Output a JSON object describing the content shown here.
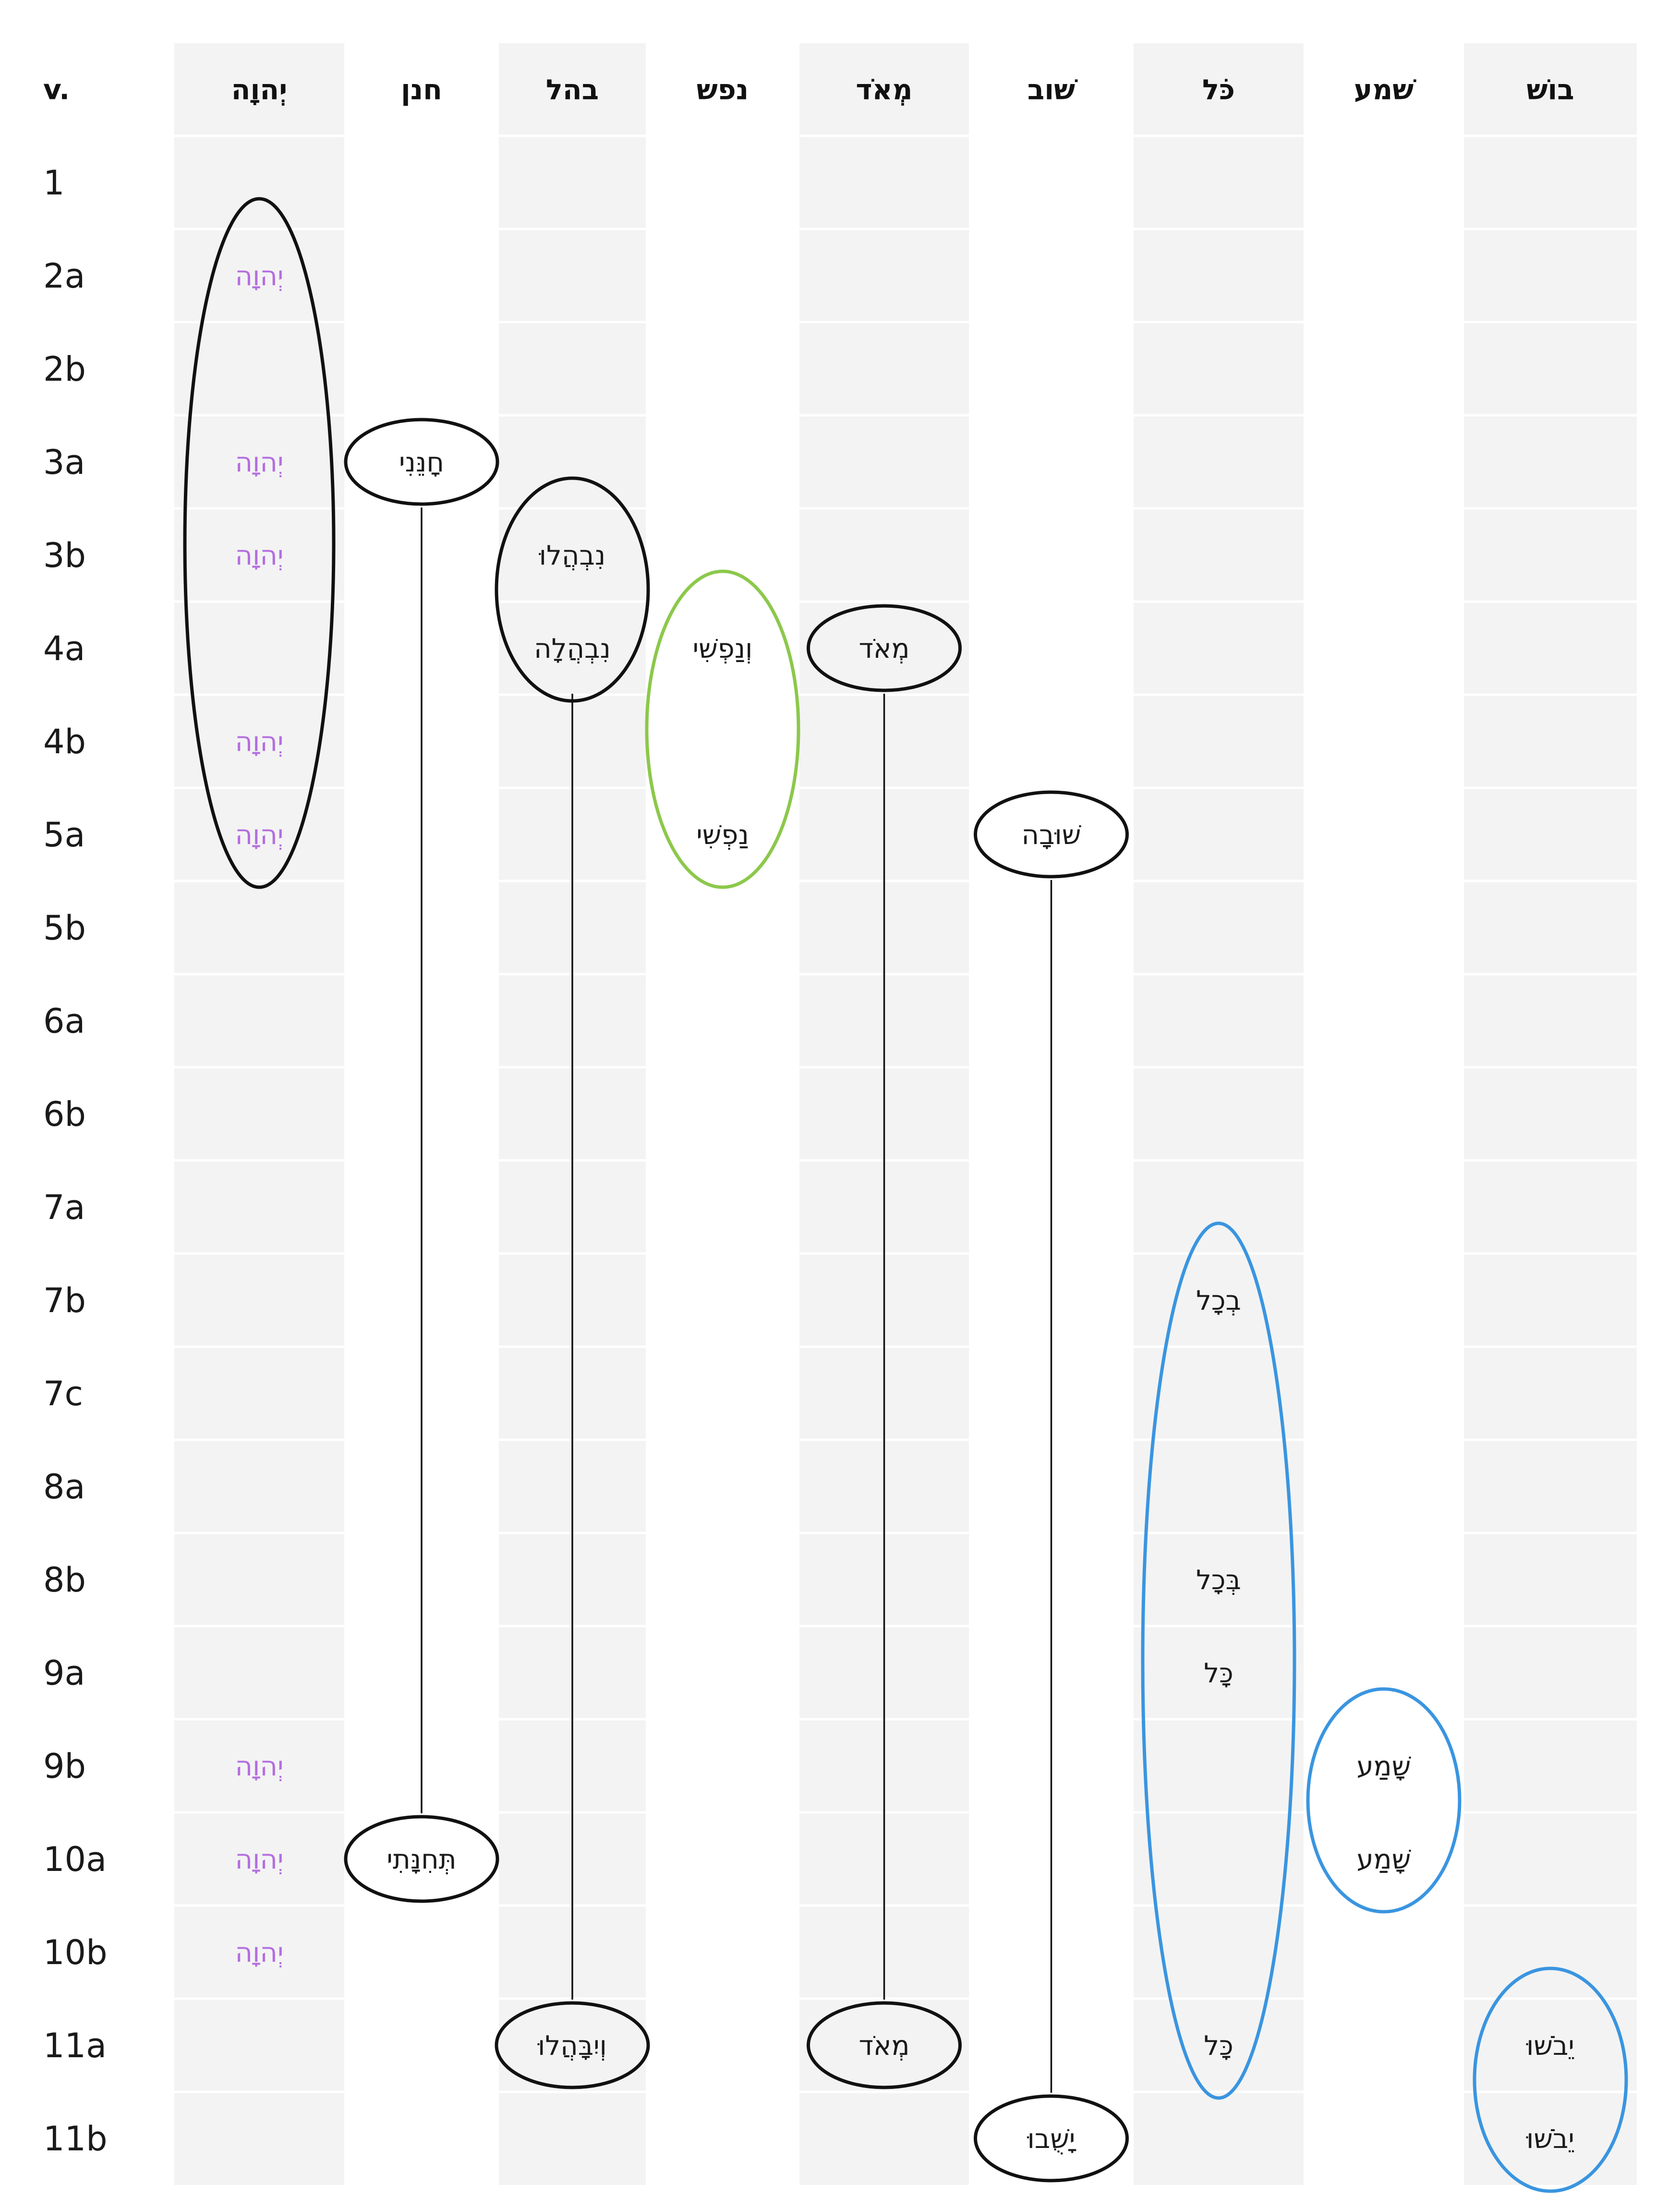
{
  "header": {
    "verse_label": "v.",
    "columns": [
      "יְהוָה",
      "חנן",
      "בהל",
      "נפש",
      "מְאֹד",
      "שׁוב",
      "כֹּל",
      "שׁמע",
      "בושׁ"
    ]
  },
  "verses": [
    "1",
    "2a",
    "2b",
    "3a",
    "3b",
    "4a",
    "4b",
    "5a",
    "5b",
    "6a",
    "6b",
    "7a",
    "7b",
    "7c",
    "8a",
    "8b",
    "9a",
    "9b",
    "10a",
    "10b",
    "11a",
    "11b"
  ],
  "colors": {
    "column_shade": "#f3f3f3",
    "row_divider": "#ffffff",
    "divine_name": "#b46ee0",
    "black_group": "#111111",
    "green_group": "#8cc84b",
    "blue_group": "#3a95e0"
  },
  "words": [
    {
      "col": 0,
      "row": 1,
      "text": "יְהוָה",
      "color": "divine"
    },
    {
      "col": 0,
      "row": 3,
      "text": "יְהוָה",
      "color": "divine"
    },
    {
      "col": 0,
      "row": 4,
      "text": "יְהוָה",
      "color": "divine"
    },
    {
      "col": 0,
      "row": 6,
      "text": "יְהוָה",
      "color": "divine"
    },
    {
      "col": 0,
      "row": 7,
      "text": "יְהוָה",
      "color": "divine"
    },
    {
      "col": 0,
      "row": 17,
      "text": "יְהוָה",
      "color": "divine"
    },
    {
      "col": 0,
      "row": 18,
      "text": "יְהוָה",
      "color": "divine"
    },
    {
      "col": 0,
      "row": 19,
      "text": "יְהוָה",
      "color": "divine"
    },
    {
      "col": 1,
      "row": 3,
      "text": "חָנֵּנִי"
    },
    {
      "col": 1,
      "row": 18,
      "text": "תְּחִנָּתִי"
    },
    {
      "col": 2,
      "row": 4,
      "text": "נִבְהֲלוּ"
    },
    {
      "col": 2,
      "row": 5,
      "text": "נִבְהֲלָה"
    },
    {
      "col": 2,
      "row": 20,
      "text": "וְיִבָּהֲלוּ"
    },
    {
      "col": 3,
      "row": 5,
      "text": "וְנַפְשִׁי"
    },
    {
      "col": 3,
      "row": 7,
      "text": "נַפְשִׁי"
    },
    {
      "col": 4,
      "row": 5,
      "text": "מְאֹד"
    },
    {
      "col": 4,
      "row": 20,
      "text": "מְאֹד"
    },
    {
      "col": 5,
      "row": 7,
      "text": "שׁוּבָה"
    },
    {
      "col": 5,
      "row": 21,
      "text": "יָשֻׁבוּ"
    },
    {
      "col": 6,
      "row": 12,
      "text": "בְכָל"
    },
    {
      "col": 6,
      "row": 15,
      "text": "בְּכָל"
    },
    {
      "col": 6,
      "row": 16,
      "text": "כָּל"
    },
    {
      "col": 6,
      "row": 20,
      "text": "כָּל"
    },
    {
      "col": 7,
      "row": 17,
      "text": "שָׁמַע"
    },
    {
      "col": 7,
      "row": 18,
      "text": "שָׁמַע"
    },
    {
      "col": 8,
      "row": 20,
      "text": "יֵבֹשׁוּ"
    },
    {
      "col": 8,
      "row": 21,
      "text": "יֵבֹשׁוּ"
    }
  ],
  "groups": [
    {
      "col": 0,
      "from": 1,
      "to": 7,
      "color": "black"
    },
    {
      "col": 3,
      "from": 5,
      "to": 7,
      "color": "green"
    },
    {
      "col": 6,
      "from": 12,
      "to": 20,
      "color": "blue"
    },
    {
      "col": 7,
      "from": 17,
      "to": 18,
      "color": "blue"
    },
    {
      "col": 8,
      "from": 20,
      "to": 21,
      "color": "blue"
    },
    {
      "col": 2,
      "from": 4,
      "to": 5,
      "color": "black"
    }
  ],
  "singles": [
    {
      "col": 1,
      "row": 3
    },
    {
      "col": 1,
      "row": 18
    },
    {
      "col": 2,
      "row": 20
    },
    {
      "col": 4,
      "row": 5
    },
    {
      "col": 4,
      "row": 20
    },
    {
      "col": 5,
      "row": 7
    },
    {
      "col": 5,
      "row": 21
    }
  ],
  "links": [
    {
      "col": 1,
      "from": 3,
      "to": 18
    },
    {
      "col": 2,
      "from": 5,
      "to": 20
    },
    {
      "col": 4,
      "from": 5,
      "to": 20
    },
    {
      "col": 5,
      "from": 7,
      "to": 21
    }
  ]
}
